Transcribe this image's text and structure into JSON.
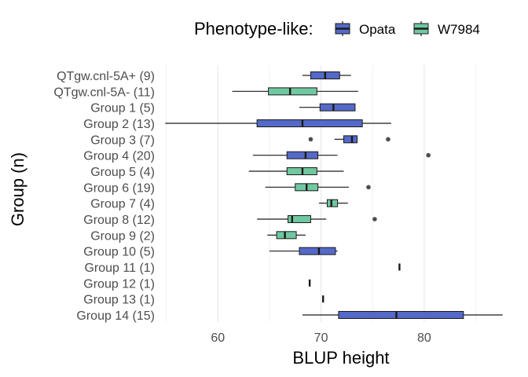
{
  "chart_data": {
    "type": "boxplot",
    "orientation": "horizontal",
    "xlabel": "BLUP height",
    "ylabel": "Group (n)",
    "xlim": [
      54.5,
      88
    ],
    "xticks": [
      60,
      70,
      80
    ],
    "grid": true,
    "legend": {
      "title": "Phenotype-like:",
      "placement": "top",
      "entries": [
        {
          "name": "Opata",
          "color": "#5469c8"
        },
        {
          "name": "W7984",
          "color": "#6fc8a0"
        }
      ]
    },
    "groups": [
      {
        "label": "QTgw.cnl-5A+ (9)",
        "series": "Opata",
        "min": 68.2,
        "q1": 69.0,
        "median": 70.4,
        "q3": 71.8,
        "max": 72.9,
        "outliers": []
      },
      {
        "label": "QTgw.cnl-5A- (11)",
        "series": "W7984",
        "min": 61.4,
        "q1": 64.9,
        "median": 67.0,
        "q3": 69.6,
        "max": 73.6,
        "outliers": []
      },
      {
        "label": "Group 1 (5)",
        "series": "Opata",
        "min": 67.9,
        "q1": 69.9,
        "median": 71.2,
        "q3": 73.3,
        "max": 73.3,
        "outliers": []
      },
      {
        "label": "Group 2 (13)",
        "series": "Opata",
        "min": 54.9,
        "q1": 63.8,
        "median": 68.2,
        "q3": 74.0,
        "max": 76.8,
        "outliers": []
      },
      {
        "label": "Group 3 (7)",
        "series": "Opata",
        "min": 71.3,
        "q1": 72.2,
        "median": 73.0,
        "q3": 73.5,
        "max": 73.5,
        "outliers": [
          69.0,
          76.5
        ]
      },
      {
        "label": "Group 4 (20)",
        "series": "Opata",
        "min": 63.4,
        "q1": 66.7,
        "median": 68.5,
        "q3": 69.7,
        "max": 71.6,
        "outliers": [
          80.4
        ]
      },
      {
        "label": "Group 5 (4)",
        "series": "W7984",
        "min": 63.0,
        "q1": 66.7,
        "median": 68.2,
        "q3": 69.6,
        "max": 72.2,
        "outliers": []
      },
      {
        "label": "Group 6 (19)",
        "series": "W7984",
        "min": 64.6,
        "q1": 67.5,
        "median": 68.6,
        "q3": 69.7,
        "max": 72.7,
        "outliers": [
          74.6
        ]
      },
      {
        "label": "Group 7 (4)",
        "series": "W7984",
        "min": 69.8,
        "q1": 70.6,
        "median": 71.0,
        "q3": 71.6,
        "max": 72.6,
        "outliers": []
      },
      {
        "label": "Group 8 (12)",
        "series": "W7984",
        "min": 63.8,
        "q1": 66.8,
        "median": 67.2,
        "q3": 69.0,
        "max": 70.5,
        "outliers": [
          75.2
        ]
      },
      {
        "label": "Group 9 (2)",
        "series": "W7984",
        "min": 64.8,
        "q1": 65.7,
        "median": 66.5,
        "q3": 67.6,
        "max": 68.5,
        "outliers": []
      },
      {
        "label": "Group 10 (5)",
        "series": "Opata",
        "min": 65.0,
        "q1": 67.9,
        "median": 69.8,
        "q3": 71.4,
        "max": 71.6,
        "outliers": []
      },
      {
        "label": "Group 11 (1)",
        "series": "Opata",
        "min": 77.6,
        "q1": 77.6,
        "median": 77.6,
        "q3": 77.6,
        "max": 77.6,
        "outliers": []
      },
      {
        "label": "Group 12 (1)",
        "series": "Opata",
        "min": 68.9,
        "q1": 68.9,
        "median": 68.9,
        "q3": 68.9,
        "max": 68.9,
        "outliers": []
      },
      {
        "label": "Group 13 (1)",
        "series": "Opata",
        "min": 70.2,
        "q1": 70.2,
        "median": 70.2,
        "q3": 70.2,
        "max": 70.2,
        "outliers": []
      },
      {
        "label": "Group 14 (15)",
        "series": "Opata",
        "min": 68.2,
        "q1": 71.7,
        "median": 77.3,
        "q3": 83.8,
        "max": 87.6,
        "outliers": []
      }
    ]
  }
}
